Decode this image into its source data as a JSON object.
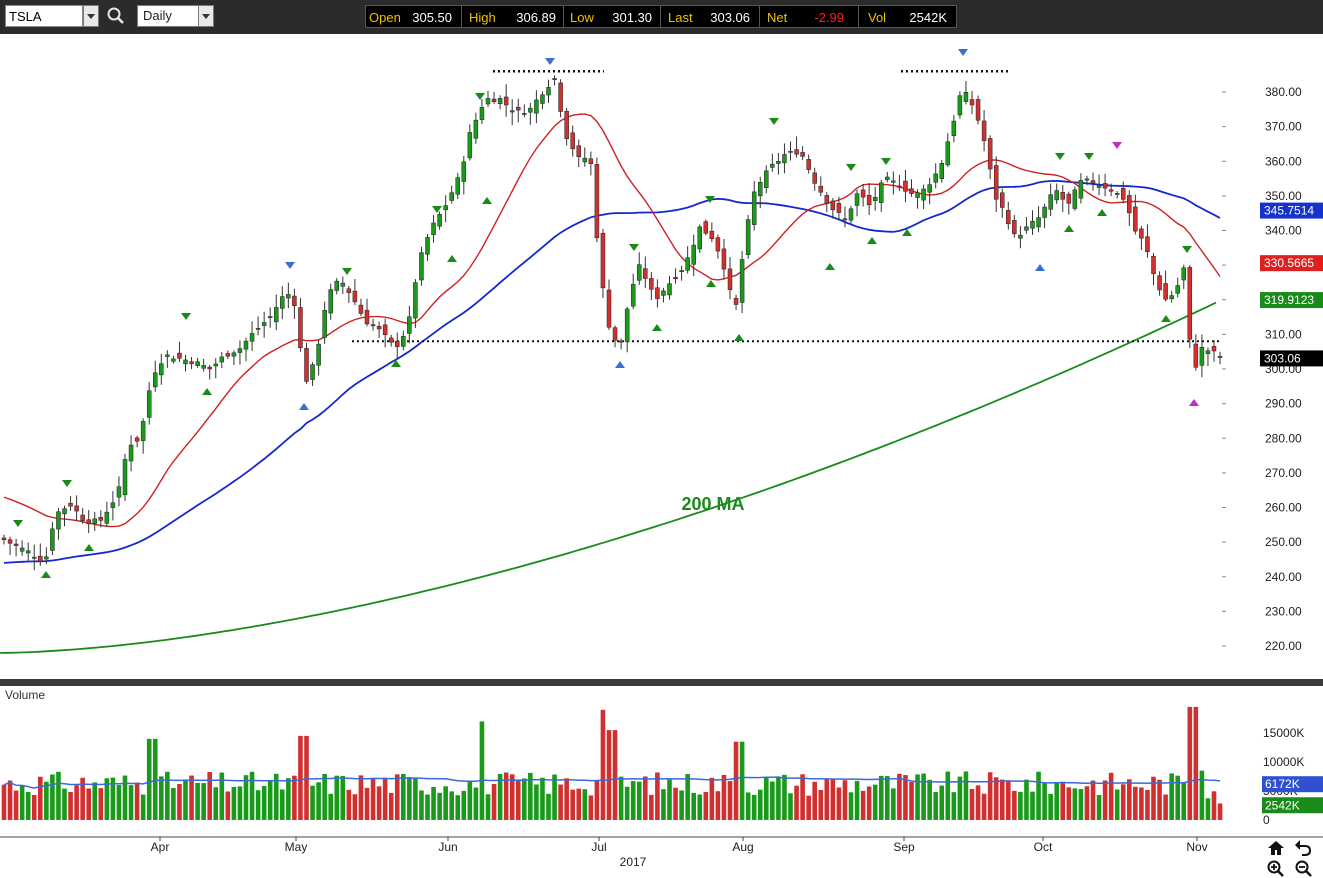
{
  "toolbar": {
    "symbol": "TSLA",
    "period": "Daily",
    "quote": [
      {
        "label": "Open",
        "value": "305.50",
        "color": "#ffffff"
      },
      {
        "label": "High",
        "value": "306.89",
        "color": "#ffffff"
      },
      {
        "label": "Low",
        "value": "301.30",
        "color": "#ffffff"
      },
      {
        "label": "Last",
        "value": "303.06",
        "color": "#ffffff"
      },
      {
        "label": "Net",
        "value": "-2.99",
        "color": "#ff2020"
      },
      {
        "label": "Vol",
        "value": "2542K",
        "color": "#ffffff"
      }
    ]
  },
  "chart_data": {
    "type": "candlestick",
    "symbol": "TSLA",
    "price_ticks": [
      "220.00",
      "230.00",
      "240.00",
      "250.00",
      "260.00",
      "270.00",
      "280.00",
      "290.00",
      "300.00",
      "310.00",
      "320.00",
      "330.00",
      "340.00",
      "350.00",
      "360.00",
      "370.00",
      "380.00"
    ],
    "price_range": [
      213,
      394
    ],
    "volume_label": "Volume",
    "volume_ticks": [
      "0",
      "5000K",
      "10000K",
      "15000K"
    ],
    "volume_range": [
      0,
      20500
    ],
    "x_labels": [
      "Apr",
      "May",
      "Jun",
      "Jul",
      "Aug",
      "Sep",
      "Oct",
      "Nov"
    ],
    "year_label": "2017",
    "annotation": "200 MA",
    "price_badges": [
      {
        "value": "345.7514",
        "bg": "#1432cc",
        "color": "#ffffff",
        "price": 345.75
      },
      {
        "value": "330.5665",
        "bg": "#dd2020",
        "color": "#ffffff",
        "price": 330.57
      },
      {
        "value": "319.9123",
        "bg": "#1a8a1a",
        "color": "#ffffff",
        "price": 319.91
      },
      {
        "value": "303.06",
        "bg": "#000000",
        "color": "#ffffff",
        "price": 303.06
      }
    ],
    "volume_badges": [
      {
        "value": "6172K",
        "bg": "#3050d0",
        "color": "#ffffff",
        "vol": 6172
      },
      {
        "value": "2542K",
        "bg": "#1a8a1a",
        "color": "#ffffff",
        "vol": 2542
      }
    ],
    "support_line": 308,
    "colors": {
      "up": "#1a9a1a",
      "down": "#d03030",
      "ma20": "#cc2222",
      "ma50": "#1428cc",
      "ma200": "#1a8a1a",
      "vol_ma": "#3a6ad8"
    }
  }
}
